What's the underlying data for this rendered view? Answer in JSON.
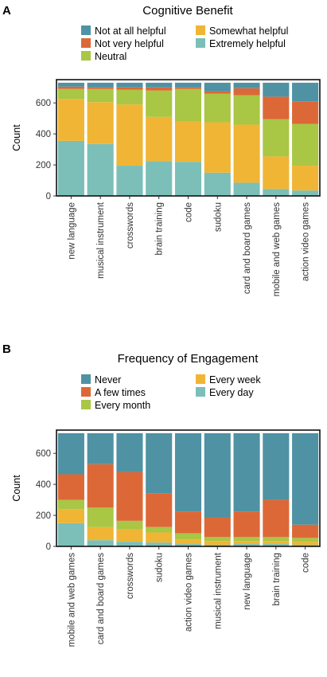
{
  "chart_data": [
    {
      "panel_label": "A",
      "type": "bar",
      "stacked": true,
      "title": "Cognitive Benefit",
      "xlabel": "",
      "ylabel": "Count",
      "ylim": [
        0,
        750
      ],
      "yticks": [
        0,
        200,
        400,
        600
      ],
      "legend_position": "top",
      "categories": [
        "new language",
        "musical instrument",
        "crosswords",
        "brain training",
        "code",
        "sudoku",
        "card and board games",
        "mobile and web games",
        "action video games"
      ],
      "series": [
        {
          "name": "Extremely helpful",
          "color": "#7bbfb8",
          "values": [
            355,
            335,
            195,
            225,
            220,
            150,
            85,
            45,
            35
          ]
        },
        {
          "name": "Somewhat helpful",
          "color": "#f0b535",
          "values": [
            270,
            270,
            395,
            285,
            260,
            325,
            375,
            210,
            160
          ]
        },
        {
          "name": "Neutral",
          "color": "#a9c645",
          "values": [
            65,
            85,
            95,
            170,
            210,
            185,
            190,
            240,
            270
          ]
        },
        {
          "name": "Not very helpful",
          "color": "#dc6838",
          "values": [
            15,
            10,
            15,
            20,
            10,
            15,
            45,
            145,
            145
          ]
        },
        {
          "name": "Not at all helpful",
          "color": "#4f92a3",
          "values": [
            25,
            30,
            30,
            30,
            30,
            55,
            35,
            90,
            120
          ]
        }
      ],
      "legend_order": [
        "Not at all helpful",
        "Not very helpful",
        "Neutral",
        "Somewhat helpful",
        "Extremely helpful"
      ]
    },
    {
      "panel_label": "B",
      "type": "bar",
      "stacked": true,
      "title": "Frequency of Engagement",
      "xlabel": "",
      "ylabel": "Count",
      "ylim": [
        0,
        750
      ],
      "yticks": [
        0,
        200,
        400,
        600
      ],
      "legend_position": "top",
      "categories": [
        "mobile and web games",
        "card and board games",
        "crosswords",
        "sudoku",
        "action video games",
        "musical instrument",
        "new language",
        "brain training",
        "code"
      ],
      "series": [
        {
          "name": "Every day",
          "color": "#7bbfb8",
          "values": [
            150,
            40,
            30,
            25,
            15,
            10,
            15,
            15,
            10
          ]
        },
        {
          "name": "Every week",
          "color": "#f0b535",
          "values": [
            90,
            85,
            80,
            65,
            30,
            25,
            20,
            20,
            20
          ]
        },
        {
          "name": "Every month",
          "color": "#a9c645",
          "values": [
            60,
            125,
            55,
            35,
            40,
            25,
            25,
            25,
            25
          ]
        },
        {
          "name": "A few times",
          "color": "#dc6838",
          "values": [
            165,
            280,
            315,
            215,
            140,
            125,
            165,
            240,
            85
          ]
        },
        {
          "name": "Never",
          "color": "#4f92a3",
          "values": [
            265,
            200,
            250,
            390,
            505,
            545,
            505,
            430,
            590
          ]
        }
      ],
      "legend_order": [
        "Never",
        "A few times",
        "Every month",
        "Every week",
        "Every day"
      ]
    }
  ]
}
